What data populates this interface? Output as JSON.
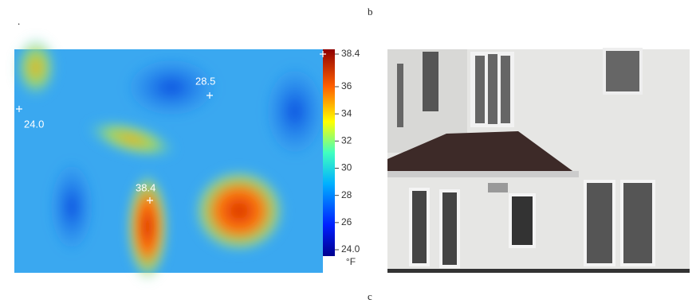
{
  "panel_labels": {
    "top": "b",
    "bottom": "c",
    "dot": "."
  },
  "thermal": {
    "markers": [
      {
        "value": 28.5
      },
      {
        "value": 24,
        "label": "24.0"
      },
      {
        "value": 38.4
      }
    ],
    "colorbar": {
      "range": [
        24,
        38.4
      ],
      "ticks": [
        38.4,
        36,
        34,
        32,
        30,
        28,
        26,
        {
          "value": 24,
          "label": "24.0"
        }
      ],
      "unit": "°F"
    }
  }
}
